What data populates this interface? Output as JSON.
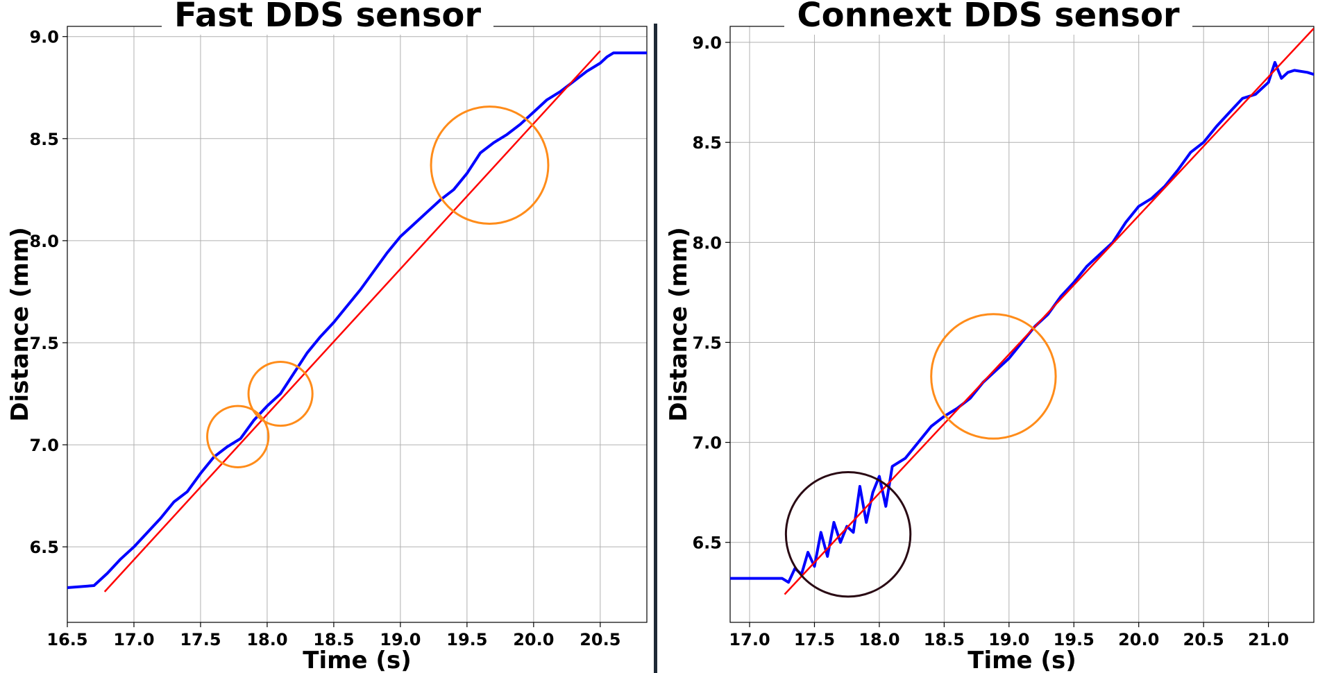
{
  "chart_data": [
    {
      "type": "line",
      "title": "Fast DDS sensor",
      "xlabel": "Time (s)",
      "ylabel": "Distance (mm)",
      "xlim": [
        16.5,
        20.85
      ],
      "ylim": [
        6.13,
        9.05
      ],
      "xticks": [
        16.5,
        17.0,
        17.5,
        18.0,
        18.5,
        19.0,
        19.5,
        20.0,
        20.5
      ],
      "yticks": [
        6.5,
        7.0,
        7.5,
        8.0,
        8.5,
        9.0
      ],
      "grid": true,
      "line_color": "#0000ff",
      "fit_color": "#ff0000",
      "measured": {
        "x": [
          16.5,
          16.7,
          16.8,
          16.9,
          17.0,
          17.1,
          17.2,
          17.3,
          17.4,
          17.5,
          17.6,
          17.7,
          17.8,
          17.9,
          18.0,
          18.1,
          18.2,
          18.3,
          18.4,
          18.5,
          18.6,
          18.7,
          18.8,
          18.9,
          19.0,
          19.1,
          19.2,
          19.3,
          19.4,
          19.5,
          19.6,
          19.7,
          19.8,
          19.9,
          20.0,
          20.1,
          20.2,
          20.3,
          20.4,
          20.5,
          20.55,
          20.6,
          20.85
        ],
        "y": [
          6.3,
          6.31,
          6.37,
          6.44,
          6.5,
          6.57,
          6.64,
          6.72,
          6.77,
          6.86,
          6.94,
          6.99,
          7.03,
          7.12,
          7.19,
          7.25,
          7.35,
          7.45,
          7.53,
          7.6,
          7.68,
          7.76,
          7.85,
          7.94,
          8.02,
          8.08,
          8.14,
          8.2,
          8.25,
          8.33,
          8.43,
          8.48,
          8.52,
          8.57,
          8.63,
          8.69,
          8.73,
          8.78,
          8.83,
          8.87,
          8.9,
          8.92,
          8.92
        ]
      },
      "fit": {
        "x": [
          16.78,
          20.5
        ],
        "y": [
          6.28,
          8.93
        ]
      },
      "annotations": [
        {
          "shape": "circle",
          "color": "#ff8c1a",
          "cx": 17.78,
          "cy": 7.04,
          "rx": 0.23
        },
        {
          "shape": "circle",
          "color": "#ff8c1a",
          "cx": 18.1,
          "cy": 7.25,
          "rx": 0.24
        },
        {
          "shape": "circle",
          "color": "#ff8c1a",
          "cx": 19.67,
          "cy": 8.37,
          "rx": 0.44
        }
      ]
    },
    {
      "type": "line",
      "title": "Connext DDS sensor",
      "xlabel": "Time (s)",
      "ylabel": "Distance (mm)",
      "xlim": [
        16.85,
        21.35
      ],
      "ylim": [
        6.1,
        9.08
      ],
      "xticks": [
        17.0,
        17.5,
        18.0,
        18.5,
        19.0,
        19.5,
        20.0,
        20.5,
        21.0
      ],
      "yticks": [
        6.5,
        7.0,
        7.5,
        8.0,
        8.5,
        9.0
      ],
      "grid": true,
      "line_color": "#0000ff",
      "fit_color": "#ff0000",
      "measured": {
        "x": [
          16.85,
          17.1,
          17.25,
          17.3,
          17.35,
          17.4,
          17.45,
          17.5,
          17.55,
          17.6,
          17.65,
          17.7,
          17.75,
          17.8,
          17.85,
          17.9,
          17.95,
          18.0,
          18.05,
          18.1,
          18.2,
          18.3,
          18.4,
          18.5,
          18.6,
          18.7,
          18.8,
          18.9,
          19.0,
          19.1,
          19.2,
          19.3,
          19.4,
          19.5,
          19.6,
          19.7,
          19.8,
          19.9,
          20.0,
          20.1,
          20.2,
          20.3,
          20.4,
          20.5,
          20.6,
          20.7,
          20.8,
          20.9,
          21.0,
          21.05,
          21.1,
          21.15,
          21.2,
          21.3,
          21.35
        ],
        "y": [
          6.32,
          6.32,
          6.32,
          6.3,
          6.37,
          6.34,
          6.45,
          6.38,
          6.55,
          6.43,
          6.6,
          6.5,
          6.58,
          6.55,
          6.78,
          6.6,
          6.75,
          6.83,
          6.68,
          6.88,
          6.92,
          7.0,
          7.08,
          7.13,
          7.17,
          7.22,
          7.3,
          7.36,
          7.42,
          7.5,
          7.58,
          7.64,
          7.73,
          7.8,
          7.88,
          7.94,
          8.0,
          8.1,
          8.18,
          8.22,
          8.28,
          8.36,
          8.45,
          8.5,
          8.58,
          8.65,
          8.72,
          8.74,
          8.8,
          8.9,
          8.82,
          8.85,
          8.86,
          8.85,
          8.84
        ]
      },
      "fit": {
        "x": [
          17.27,
          21.35
        ],
        "y": [
          6.24,
          9.07
        ]
      },
      "annotations": [
        {
          "shape": "circle",
          "color": "#ff8c1a",
          "cx": 18.88,
          "cy": 7.33,
          "rx": 0.48
        },
        {
          "shape": "circle",
          "color": "#2a0a14",
          "cx": 17.76,
          "cy": 6.54,
          "rx": 0.48
        }
      ]
    }
  ]
}
